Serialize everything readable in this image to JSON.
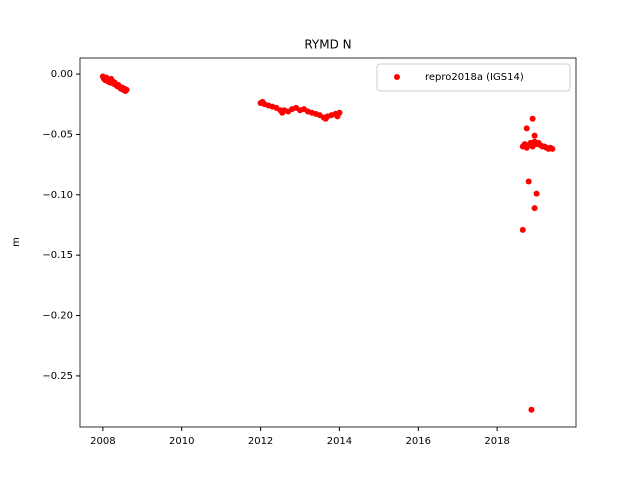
{
  "chart_data": {
    "type": "scatter",
    "title": "RYMD N",
    "y_label": "m",
    "legend": "upper right",
    "xlim": [
      2007.42,
      2020.0
    ],
    "xticks": [
      2008,
      2010,
      2012,
      2014,
      2016,
      2018
    ],
    "ylim": [
      -0.2923,
      0.0133
    ],
    "yticks": [
      {
        "value": 0,
        "label": "0.00"
      },
      {
        "value": -0.05,
        "label": "−0.05"
      },
      {
        "value": -0.1,
        "label": "−0.10"
      },
      {
        "value": -0.15,
        "label": "−0.15"
      },
      {
        "value": -0.2,
        "label": "−0.20"
      },
      {
        "value": -0.25,
        "label": "−0.25"
      }
    ],
    "series": [
      {
        "name": "repro2018a (IGS14)",
        "color": "#ff0000",
        "x": [
          2008.0,
          2008.03,
          2008.06,
          2008.09,
          2008.12,
          2008.15,
          2008.18,
          2008.21,
          2008.24,
          2008.27,
          2008.3,
          2008.33,
          2008.36,
          2008.39,
          2008.42,
          2008.45,
          2008.48,
          2008.51,
          2008.54,
          2008.57,
          2008.6,
          2012.0,
          2012.05,
          2012.1,
          2012.2,
          2012.3,
          2012.4,
          2012.5,
          2012.55,
          2012.6,
          2012.7,
          2012.8,
          2012.9,
          2013.0,
          2013.1,
          2013.2,
          2013.3,
          2013.4,
          2013.5,
          2013.6,
          2013.65,
          2013.7,
          2013.8,
          2013.9,
          2013.95,
          2014.0,
          2018.65,
          2018.7,
          2018.75,
          2018.8,
          2018.85,
          2018.9,
          2018.95,
          2019.0,
          2019.05,
          2019.1,
          2019.15,
          2019.2,
          2019.25,
          2019.3,
          2019.35,
          2019.4,
          2018.65,
          2018.75,
          2018.8,
          2018.87,
          2018.9,
          2018.95,
          2019.0,
          2018.95
        ],
        "values": [
          -0.002,
          -0.004,
          -0.005,
          -0.003,
          -0.006,
          -0.005,
          -0.007,
          -0.004,
          -0.006,
          -0.008,
          -0.007,
          -0.009,
          -0.01,
          -0.009,
          -0.011,
          -0.012,
          -0.011,
          -0.013,
          -0.012,
          -0.014,
          -0.013,
          -0.024,
          -0.023,
          -0.025,
          -0.026,
          -0.027,
          -0.028,
          -0.03,
          -0.032,
          -0.03,
          -0.031,
          -0.029,
          -0.028,
          -0.03,
          -0.029,
          -0.031,
          -0.032,
          -0.033,
          -0.034,
          -0.036,
          -0.037,
          -0.035,
          -0.034,
          -0.033,
          -0.035,
          -0.032,
          -0.06,
          -0.058,
          -0.061,
          -0.059,
          -0.057,
          -0.06,
          -0.056,
          -0.058,
          -0.057,
          -0.059,
          -0.06,
          -0.06,
          -0.061,
          -0.062,
          -0.061,
          -0.062,
          -0.129,
          -0.045,
          -0.089,
          -0.278,
          -0.037,
          -0.111,
          -0.099,
          -0.051
        ]
      }
    ]
  }
}
